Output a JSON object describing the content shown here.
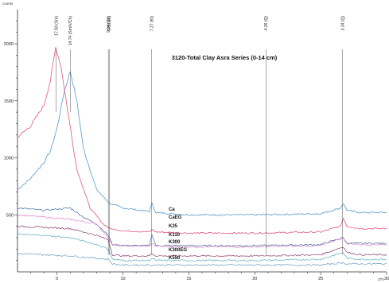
{
  "chart_data": {
    "type": "line",
    "title": "3120-Total Clay Asra Series (0-14 cm)",
    "ylabel": "counts",
    "xlabel": "2Th",
    "xlim": [
      2,
      30
    ],
    "ylim": [
      0,
      2300
    ],
    "x_ticks": [
      5,
      10,
      15,
      20,
      25,
      30
    ],
    "y_ticks": [
      500,
      1000,
      1500,
      2000
    ],
    "grid": false,
    "legend_labels": [
      "Ca",
      "CaEG",
      "K25",
      "K110",
      "K300",
      "K300EG",
      "K550"
    ],
    "peak_labels": [
      {
        "x": 4.93,
        "label": "17.93 (Sm)"
      },
      {
        "x": 6.0,
        "label": "14.74 (Sm/V/Ch)"
      },
      {
        "x": 8.89,
        "label": "9.94 (Ch)"
      },
      {
        "x": 8.96,
        "label": "9.86 (M)"
      },
      {
        "x": 12.17,
        "label": "7.27 (Kt)"
      },
      {
        "x": 20.85,
        "label": "4.26 (Q)"
      },
      {
        "x": 26.66,
        "label": "3.34 (Q)"
      }
    ],
    "series": [
      {
        "color": "#3d8fbf",
        "x": [
          2,
          3,
          4,
          4.5,
          5,
          5.5,
          6,
          6.5,
          7,
          8,
          9,
          10,
          12,
          12.2,
          12.5,
          15,
          20,
          25,
          26.5,
          26.7,
          27,
          28,
          30
        ],
        "values": [
          720,
          820,
          960,
          1060,
          1260,
          1560,
          1760,
          1500,
          1080,
          720,
          600,
          560,
          530,
          600,
          520,
          500,
          500,
          510,
          560,
          600,
          540,
          520,
          520
        ]
      },
      {
        "color": "#e0406a",
        "x": [
          2,
          3,
          4,
          4.5,
          4.9,
          5.3,
          5.8,
          6.5,
          7.5,
          8.5,
          9,
          10,
          12,
          12.2,
          12.5,
          15,
          20,
          25,
          26.5,
          26.7,
          27,
          28,
          30
        ],
        "values": [
          1180,
          1280,
          1460,
          1680,
          1970,
          1800,
          1420,
          900,
          560,
          420,
          380,
          360,
          350,
          370,
          350,
          340,
          340,
          350,
          400,
          470,
          400,
          380,
          380
        ]
      },
      {
        "color": "#3f6ea0",
        "x": [
          2,
          4,
          6,
          7,
          8,
          8.9,
          9.2,
          10,
          12,
          12.2,
          12.5,
          15,
          20,
          25,
          26.7,
          27,
          28,
          30
        ],
        "values": [
          560,
          540,
          560,
          480,
          420,
          320,
          240,
          230,
          230,
          330,
          230,
          230,
          230,
          240,
          300,
          250,
          250,
          250
        ]
      },
      {
        "color": "#e080c8",
        "x": [
          2,
          4,
          6,
          8,
          8.9,
          9.2,
          10,
          12,
          12.2,
          12.5,
          15,
          20,
          25,
          26.7,
          27,
          28,
          30
        ],
        "values": [
          500,
          480,
          460,
          420,
          300,
          240,
          230,
          225,
          250,
          225,
          220,
          220,
          230,
          300,
          250,
          240,
          240
        ]
      },
      {
        "color": "#8a3d6c",
        "x": [
          2,
          4,
          6,
          8,
          8.9,
          9.2,
          10,
          12,
          12.2,
          12.5,
          15,
          20,
          25,
          26.7,
          27,
          28,
          30
        ],
        "values": [
          400,
          390,
          380,
          320,
          280,
          150,
          140,
          140,
          160,
          140,
          140,
          140,
          150,
          220,
          170,
          150,
          150
        ]
      },
      {
        "color": "#5aaec0",
        "x": [
          2,
          4,
          6,
          8,
          8.9,
          9.2,
          10,
          12,
          12.2,
          12.5,
          15,
          20,
          25,
          26.7,
          27,
          28,
          30
        ],
        "values": [
          330,
          320,
          300,
          240,
          200,
          110,
          100,
          100,
          120,
          100,
          100,
          100,
          110,
          170,
          120,
          110,
          110
        ]
      },
      {
        "color": "#6a9ac0",
        "x": [
          2,
          4,
          6,
          8,
          8.9,
          9.2,
          10,
          12,
          15,
          20,
          25,
          26.7,
          27,
          28,
          30
        ],
        "values": [
          160,
          150,
          140,
          120,
          110,
          70,
          60,
          60,
          60,
          60,
          60,
          80,
          70,
          70,
          70
        ]
      }
    ]
  }
}
